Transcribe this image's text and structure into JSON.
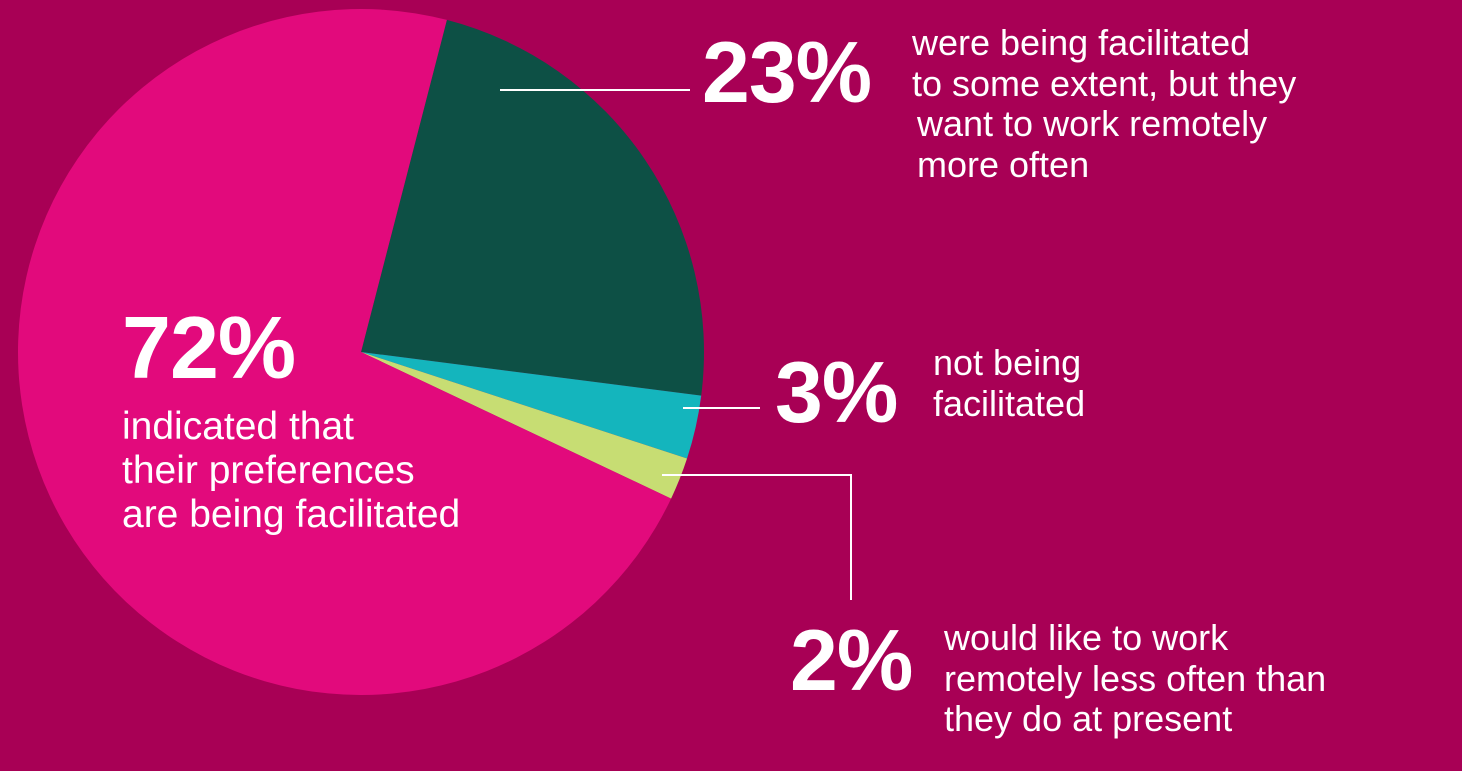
{
  "chart_data": {
    "type": "pie",
    "title": "",
    "slices": [
      {
        "value": 72,
        "label": "72%",
        "color": "#e20a7c",
        "description": [
          "indicated that",
          "their preferences",
          "are being facilitated"
        ]
      },
      {
        "value": 23,
        "label": "23%",
        "color": "#0d5045",
        "description": [
          "were being facilitated",
          "to some extent, but they",
          "want to work remotely",
          "more often"
        ]
      },
      {
        "value": 3,
        "label": "3%",
        "color": "#14b5bd",
        "description": [
          "not being",
          "facilitated"
        ]
      },
      {
        "value": 2,
        "label": "2%",
        "color": "#c7dd73",
        "description": [
          "would like to work",
          "remotely less often than",
          "they do at present"
        ]
      }
    ]
  },
  "colors": {
    "background": "#a80055",
    "text": "#ffffff",
    "leader": "#ffffff"
  }
}
